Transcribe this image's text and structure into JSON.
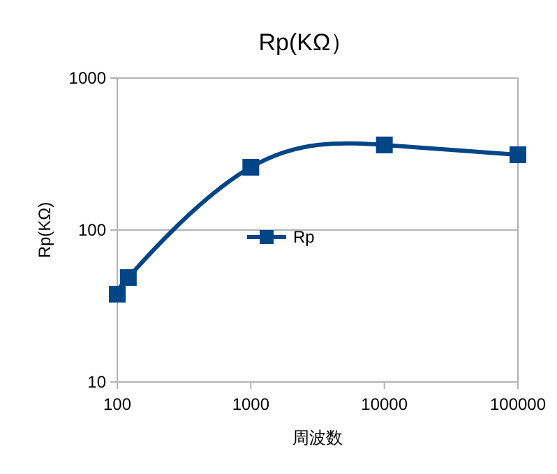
{
  "chart_data": {
    "type": "line",
    "title": "Rp(KΩ）",
    "xlabel": "周波数",
    "ylabel": "Rp(KΩ)",
    "x": [
      100,
      121,
      1000,
      10000,
      100000
    ],
    "series": [
      {
        "name": "Rp",
        "color": "#004586",
        "values": [
          37.8,
          48.7,
          259,
          363,
          313
        ]
      }
    ],
    "log": "xy",
    "xlim": [
      100,
      100000
    ],
    "xticks": [
      100,
      1000,
      10000,
      100000
    ],
    "ylim": [
      10,
      1000
    ],
    "yticks": [
      10,
      100,
      1000
    ],
    "grid": "y",
    "legend": "center",
    "marker": "square",
    "line_style": "solid"
  }
}
